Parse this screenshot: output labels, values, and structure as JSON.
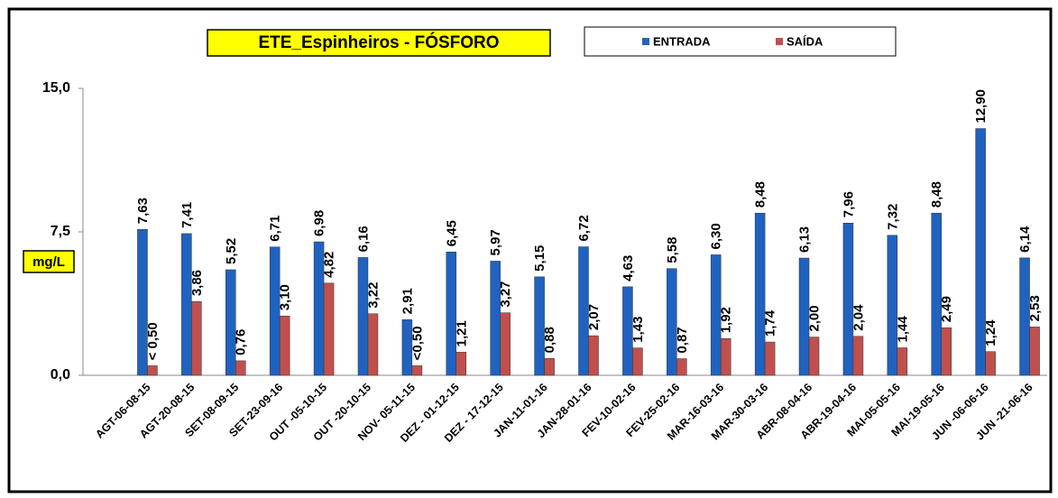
{
  "chart_data": {
    "type": "bar",
    "title": "ETE_Espinheiros - FÓSFORO",
    "y_label": "mg/L",
    "categories": [
      "AGT-06-08-15",
      "AGT-20-08-15",
      "SET-08-09-15",
      "SET-23-09-16",
      "OUT -05-10-15",
      "OUT -20-10-15",
      "NOV- 05-11-15",
      "DEZ - 01-12-15",
      "DEZ - 17-12-15",
      "JAN-11-01-16",
      "JAN-28-01-16",
      "FEV-10-02-16",
      "FEV-25-02-16",
      "MAR-16-03-16",
      "MAR-30-03-16",
      "ABR-08-04-16",
      "ABR-19-04-16",
      "MAI-05-05-16",
      "MAI-19-05-16",
      "JUN -06-06-16",
      "JUN -21-06-16"
    ],
    "series": [
      {
        "name": "ENTRADA",
        "color": "#1f62c0",
        "values": [
          7.63,
          7.41,
          5.52,
          6.71,
          6.98,
          6.16,
          2.91,
          6.45,
          5.97,
          5.15,
          6.72,
          4.63,
          5.58,
          6.3,
          8.48,
          6.13,
          7.96,
          7.32,
          8.48,
          12.9,
          6.14
        ],
        "value_labels": [
          "7,63",
          "7,41",
          "5,52",
          "6,71",
          "6,98",
          "6,16",
          "2,91",
          "6,45",
          "5,97",
          "5,15",
          "6,72",
          "4,63",
          "5,58",
          "6,30",
          "8,48",
          "6,13",
          "7,96",
          "7,32",
          "8,48",
          "12,90",
          "6,14"
        ]
      },
      {
        "name": "SAÍDA",
        "color": "#c0504d",
        "values": [
          0.5,
          3.86,
          0.76,
          3.1,
          4.82,
          3.22,
          0.5,
          1.21,
          3.27,
          0.88,
          2.07,
          1.43,
          0.87,
          1.92,
          1.74,
          2.0,
          2.04,
          1.44,
          2.49,
          1.24,
          2.53
        ],
        "value_labels": [
          "< 0,50",
          "3,86",
          "0,76",
          "3,10",
          "4,82",
          "3,22",
          "<0,50",
          "1,21",
          "3,27",
          "0,88",
          "2,07",
          "1,43",
          "0,87",
          "1,92",
          "1,74",
          "2,00",
          "2,04",
          "1,44",
          "2,49",
          "1,24",
          "2,53"
        ]
      }
    ],
    "ylim": [
      0,
      15
    ],
    "yticks": [
      {
        "value": 0,
        "label": "0,0"
      },
      {
        "value": 7.5,
        "label": "7,5"
      },
      {
        "value": 15,
        "label": "15,0"
      }
    ],
    "grid": false
  }
}
